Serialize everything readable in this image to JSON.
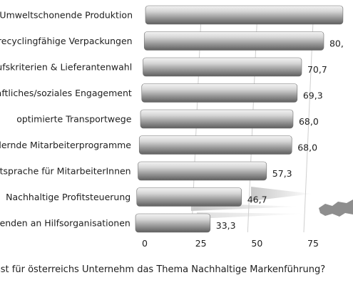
{
  "chart_data": {
    "type": "bar",
    "orientation": "horizontal",
    "categories": [
      "Umweltschonende Produktion",
      "recyclingfähige Verpackungen",
      "kaufskriterien & Lieferantenwahl",
      "chaftliches/soziales Engagement",
      "optimierte Transportwege",
      "fördernde Mitarbeiterprogramme",
      "Mitsprache für MitarbeiterInnen",
      "Nachhaltige Profitsteuerung",
      "pspenden an Hilfsorganisationen"
    ],
    "values": [
      88.0,
      80.0,
      70.7,
      69.3,
      68.0,
      68.0,
      57.3,
      46.7,
      33.3
    ],
    "value_labels": [
      "",
      "80,",
      "70,7",
      "69,3",
      "68,0",
      "68,0",
      "57,3",
      "46,7",
      "33,3"
    ],
    "x_ticks": [
      0,
      25,
      50,
      75
    ],
    "x_tick_labels": [
      "0",
      "25",
      "50",
      "75"
    ],
    "xlim": [
      0,
      95
    ],
    "grid": true,
    "bar_color": "#a9a9a9",
    "xlabel": "sst für österreichs Unternehm das Thema Nachhaltige Markenführung?"
  }
}
